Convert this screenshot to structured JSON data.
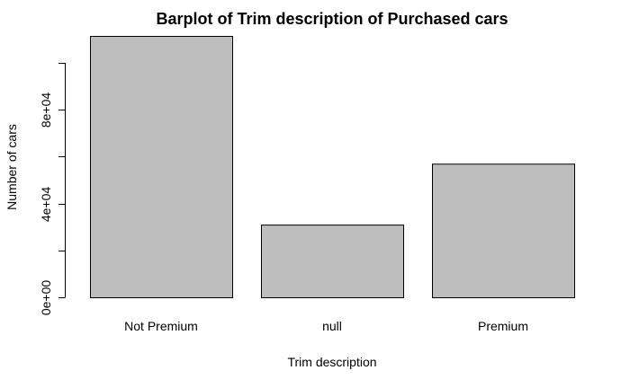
{
  "chart_data": {
    "type": "bar",
    "title": "Barplot of Trim description of Purchased cars",
    "xlabel": "Trim description",
    "ylabel": "Number of cars",
    "categories": [
      "Not Premium",
      "null",
      "Premium"
    ],
    "values": [
      111500,
      31000,
      57000
    ],
    "ylim": [
      0,
      111500
    ],
    "yticks": [
      0,
      20000,
      40000,
      60000,
      80000,
      100000
    ],
    "yticklabels": [
      "0e+00",
      "",
      "4e+04",
      "",
      "8e+04",
      ""
    ],
    "bar_color": "#bebebe",
    "grid": false,
    "legend": "none"
  }
}
